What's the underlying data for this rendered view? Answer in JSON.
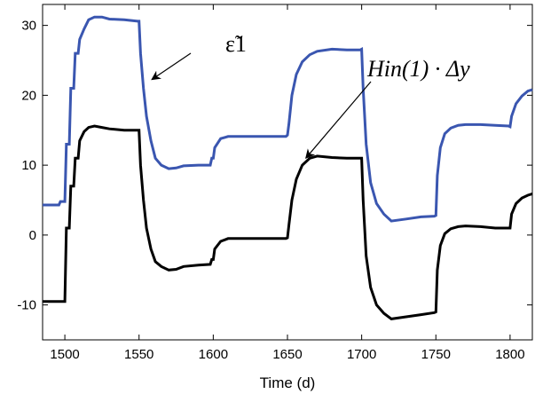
{
  "chart_data": {
    "type": "line",
    "title": "",
    "xlabel": "Time (d)",
    "ylabel": "",
    "xlim": [
      1485,
      1815
    ],
    "ylim": [
      -15,
      33
    ],
    "xticks": [
      "1500",
      "1550",
      "1600",
      "1650",
      "1700",
      "1750",
      "1800"
    ],
    "yticks": [
      "30",
      "20",
      "10",
      "0",
      "-10"
    ],
    "grid": false,
    "legend": "none",
    "annotations": [
      {
        "label": "ε̃1",
        "target_series": 0,
        "target": [
          1555,
          22
        ],
        "text_at": [
          1585,
          29
        ]
      },
      {
        "label": "Hin(1) · Δy",
        "target_series": 1,
        "target": [
          1660,
          10.5
        ],
        "text_at": [
          1730,
          24
        ]
      }
    ],
    "series": [
      {
        "color": "#3a56b0",
        "x": [
          1485,
          1496,
          1497,
          1500,
          1501,
          1503,
          1504,
          1506,
          1507,
          1509,
          1510,
          1513,
          1516,
          1520,
          1525,
          1530,
          1540,
          1549,
          1550,
          1551,
          1553,
          1555,
          1558,
          1561,
          1565,
          1570,
          1575,
          1580,
          1590,
          1598,
          1599,
          1600,
          1601,
          1605,
          1610,
          1620,
          1630,
          1640,
          1649,
          1650,
          1651,
          1653,
          1656,
          1660,
          1665,
          1670,
          1680,
          1690,
          1699,
          1700,
          1701,
          1703,
          1706,
          1710,
          1715,
          1720,
          1730,
          1740,
          1749,
          1750,
          1751,
          1753,
          1756,
          1760,
          1765,
          1770,
          1780,
          1790,
          1799,
          1800,
          1801,
          1804,
          1808,
          1812,
          1815
        ],
        "y": [
          4.3,
          4.3,
          4.8,
          4.8,
          13,
          13,
          21,
          21,
          26,
          26,
          28,
          29.5,
          30.8,
          31.2,
          31.2,
          30.9,
          30.8,
          30.6,
          30.6,
          26,
          21,
          17,
          13.5,
          11,
          10,
          9.5,
          9.6,
          9.9,
          10,
          10,
          11,
          11,
          12.5,
          13.8,
          14.1,
          14.1,
          14.1,
          14.1,
          14.1,
          14.3,
          16,
          20,
          23,
          24.8,
          25.8,
          26.3,
          26.6,
          26.5,
          26.5,
          26.6,
          21,
          13,
          7.5,
          4.5,
          3,
          2,
          2.3,
          2.6,
          2.7,
          2.8,
          8.5,
          12.5,
          14.5,
          15.3,
          15.7,
          15.8,
          15.8,
          15.7,
          15.6,
          15.5,
          17,
          18.8,
          19.9,
          20.6,
          20.8
        ]
      },
      {
        "color": "#000000",
        "x": [
          1485,
          1496,
          1497,
          1500,
          1501,
          1503,
          1504,
          1506,
          1507,
          1509,
          1510,
          1513,
          1516,
          1520,
          1525,
          1530,
          1540,
          1549,
          1550,
          1551,
          1553,
          1555,
          1558,
          1561,
          1565,
          1570,
          1575,
          1580,
          1590,
          1598,
          1599,
          1600,
          1601,
          1605,
          1610,
          1620,
          1630,
          1640,
          1649,
          1650,
          1651,
          1653,
          1656,
          1660,
          1665,
          1670,
          1680,
          1690,
          1699,
          1700,
          1701,
          1703,
          1706,
          1710,
          1715,
          1720,
          1730,
          1740,
          1749,
          1750,
          1751,
          1753,
          1756,
          1760,
          1765,
          1770,
          1780,
          1790,
          1799,
          1800,
          1801,
          1804,
          1808,
          1812,
          1815
        ],
        "y": [
          -9.5,
          -9.5,
          -9.5,
          -9.5,
          1,
          1,
          7,
          7,
          11,
          11,
          13.5,
          14.8,
          15.4,
          15.6,
          15.4,
          15.2,
          15,
          15,
          15,
          10,
          5,
          1,
          -2,
          -3.8,
          -4.5,
          -5,
          -4.9,
          -4.5,
          -4.3,
          -4.2,
          -3.5,
          -3.5,
          -2,
          -0.9,
          -0.5,
          -0.5,
          -0.5,
          -0.5,
          -0.5,
          -0.4,
          1.5,
          5,
          8,
          10,
          11,
          11.3,
          11.1,
          11,
          11,
          11,
          5,
          -3,
          -7.5,
          -10,
          -11.2,
          -12,
          -11.7,
          -11.4,
          -11.1,
          -11,
          -5,
          -1.5,
          0.2,
          0.9,
          1.2,
          1.3,
          1.2,
          1,
          1,
          1,
          3,
          4.5,
          5.3,
          5.7,
          5.9
        ]
      }
    ]
  }
}
